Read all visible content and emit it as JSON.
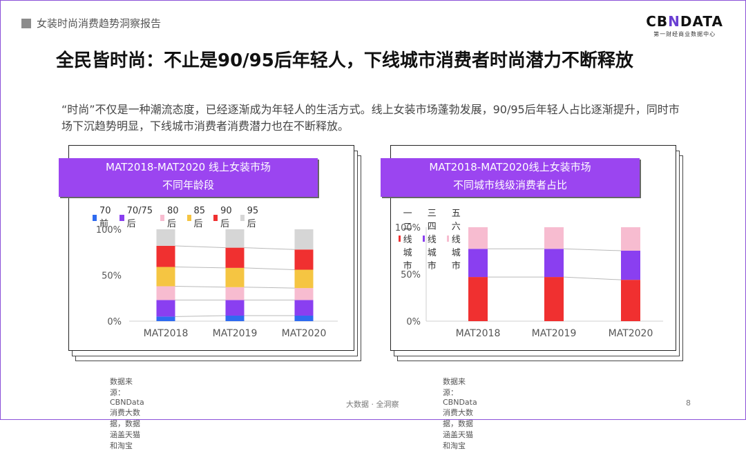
{
  "header": {
    "section_label": "女装时尚消费趋势洞察报告"
  },
  "logo": {
    "brand_prefix": "CB",
    "brand_x": "N",
    "brand_suffix": "DATA",
    "tagline": "第一财经商业数据中心"
  },
  "title": "全民皆时尚：不止是90/95后年轻人，下线城市消费者时尚潜力不断释放",
  "description": "“时尚”不仅是一种潮流态度，已经逐渐成为年轻人的生活方式。线上女装市场蓬勃发展，90/95后年轻人占比逐渐提升，同时市场下沉趋势明显，下线城市消费者消费潜力也在不断释放。",
  "colors": {
    "accent": "#9b45f0",
    "blue": "#2f6bf0",
    "purple": "#8a3ff0",
    "pink": "#f7bcd0",
    "yellow": "#f5c542",
    "red": "#f03030",
    "grey": "#d6d6d6"
  },
  "charts": {
    "left": {
      "title_line1": "MAT2018-MAT2020 线上女装市场",
      "title_line2": "不同年龄段",
      "source": "数据来源：CBNData消费大数据，数据涵盖天猫和淘宝"
    },
    "right": {
      "title_line1": "MAT2018-MAT2020线上女装市场",
      "title_line2": "不同城市线级消费者占比",
      "source": "数据来源：CBNData消费大数据，数据涵盖天猫和淘宝"
    }
  },
  "chart_data": [
    {
      "type": "bar",
      "stacked": true,
      "title": "MAT2018-MAT2020 线上女装市场 不同年龄段",
      "categories": [
        "MAT2018",
        "MAT2019",
        "MAT2020"
      ],
      "yticks": [
        "0%",
        "50%",
        "100%"
      ],
      "ylim": [
        0,
        100
      ],
      "legend_position": "top",
      "series": [
        {
          "name": "70前",
          "color": "#2f6bf0",
          "values": [
            5,
            6,
            6
          ]
        },
        {
          "name": "70/75后",
          "color": "#8a3ff0",
          "values": [
            18,
            17,
            17
          ]
        },
        {
          "name": "80后",
          "color": "#f7bcd0",
          "values": [
            15,
            14,
            13
          ]
        },
        {
          "name": "85后",
          "color": "#f5c542",
          "values": [
            21,
            21,
            20
          ]
        },
        {
          "name": "90后",
          "color": "#f03030",
          "values": [
            23,
            22,
            22
          ]
        },
        {
          "name": "95后",
          "color": "#d6d6d6",
          "values": [
            18,
            20,
            22
          ]
        }
      ]
    },
    {
      "type": "bar",
      "stacked": true,
      "title": "MAT2018-MAT2020线上女装市场 不同城市线级消费者占比",
      "categories": [
        "MAT2018",
        "MAT2019",
        "MAT2020"
      ],
      "yticks": [
        "0%",
        "50%",
        "100%"
      ],
      "ylim": [
        0,
        100
      ],
      "legend_position": "top",
      "series": [
        {
          "name": "一二线城市",
          "color": "#f03030",
          "values": [
            47,
            47,
            44
          ]
        },
        {
          "name": "三四线城市",
          "color": "#8a3ff0",
          "values": [
            30,
            30,
            31
          ]
        },
        {
          "name": "五六线城市",
          "color": "#f7bcd0",
          "values": [
            23,
            23,
            25
          ]
        }
      ]
    }
  ],
  "footer": {
    "text": "大数据 · 全洞察",
    "page_number": "8"
  }
}
